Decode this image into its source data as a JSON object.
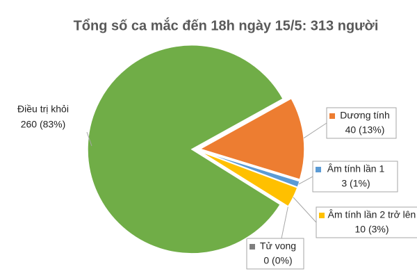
{
  "chart_data": {
    "type": "pie",
    "title": "Tổng số ca mắc đến 18h ngày 15/5: 313 người",
    "categories": [
      "Dương tính",
      "Âm tính lần 1",
      "Âm tính lần 2 trở lên",
      "Tử vong",
      "Điều trị khỏi"
    ],
    "values": [
      40,
      3,
      10,
      0,
      260
    ],
    "value_labels": [
      "40 (13%)",
      "3 (1%)",
      "10 (3%)",
      "0 (0%)",
      "260 (83%)"
    ],
    "colors": [
      "#ed7d31",
      "#5b9bd5",
      "#ffc000",
      "#7f7f7f",
      "#70ad47"
    ]
  }
}
